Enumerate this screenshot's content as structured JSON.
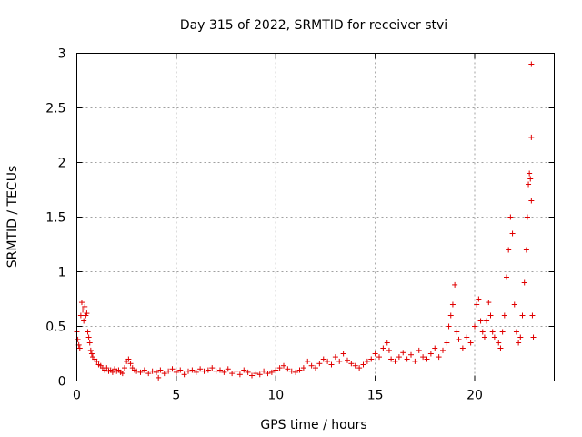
{
  "chart_data": {
    "type": "scatter",
    "title": "Day 315 of 2022, SRMTID for receiver stvi",
    "xlabel": "GPS time / hours",
    "ylabel": "SRMTID / TECUs",
    "xlim": [
      0,
      24
    ],
    "ylim": [
      0,
      3
    ],
    "xticks": [
      0,
      5,
      10,
      15,
      20
    ],
    "xtick_labels": [
      "0",
      "5",
      "10",
      "15",
      "20"
    ],
    "yticks": [
      0,
      0.5,
      1,
      1.5,
      2,
      2.5,
      3
    ],
    "ytick_labels": [
      "0",
      "0.5",
      "1",
      "1.5",
      "2",
      "2.5",
      "3"
    ],
    "grid": true,
    "marker": "+",
    "color": "#e00000",
    "series": [
      {
        "name": "SRMTID",
        "points": [
          [
            0.0,
            0.45
          ],
          [
            0.05,
            0.38
          ],
          [
            0.1,
            0.33
          ],
          [
            0.15,
            0.3
          ],
          [
            0.2,
            0.6
          ],
          [
            0.25,
            0.72
          ],
          [
            0.3,
            0.65
          ],
          [
            0.35,
            0.55
          ],
          [
            0.4,
            0.68
          ],
          [
            0.45,
            0.6
          ],
          [
            0.5,
            0.62
          ],
          [
            0.55,
            0.45
          ],
          [
            0.6,
            0.4
          ],
          [
            0.65,
            0.35
          ],
          [
            0.7,
            0.28
          ],
          [
            0.75,
            0.25
          ],
          [
            0.8,
            0.22
          ],
          [
            0.9,
            0.2
          ],
          [
            1.0,
            0.18
          ],
          [
            1.1,
            0.15
          ],
          [
            1.2,
            0.14
          ],
          [
            1.3,
            0.12
          ],
          [
            1.4,
            0.1
          ],
          [
            1.5,
            0.12
          ],
          [
            1.6,
            0.09
          ],
          [
            1.7,
            0.1
          ],
          [
            1.8,
            0.08
          ],
          [
            1.9,
            0.11
          ],
          [
            2.0,
            0.09
          ],
          [
            2.1,
            0.1
          ],
          [
            2.2,
            0.08
          ],
          [
            2.3,
            0.07
          ],
          [
            2.4,
            0.12
          ],
          [
            2.5,
            0.18
          ],
          [
            2.6,
            0.2
          ],
          [
            2.7,
            0.16
          ],
          [
            2.8,
            0.12
          ],
          [
            2.9,
            0.1
          ],
          [
            3.0,
            0.09
          ],
          [
            3.2,
            0.08
          ],
          [
            3.4,
            0.1
          ],
          [
            3.6,
            0.07
          ],
          [
            3.8,
            0.09
          ],
          [
            4.0,
            0.08
          ],
          [
            4.1,
            0.03
          ],
          [
            4.2,
            0.1
          ],
          [
            4.4,
            0.07
          ],
          [
            4.6,
            0.09
          ],
          [
            4.8,
            0.11
          ],
          [
            5.0,
            0.08
          ],
          [
            5.2,
            0.1
          ],
          [
            5.4,
            0.06
          ],
          [
            5.6,
            0.09
          ],
          [
            5.8,
            0.1
          ],
          [
            6.0,
            0.08
          ],
          [
            6.2,
            0.11
          ],
          [
            6.4,
            0.09
          ],
          [
            6.6,
            0.1
          ],
          [
            6.8,
            0.12
          ],
          [
            7.0,
            0.09
          ],
          [
            7.2,
            0.1
          ],
          [
            7.4,
            0.08
          ],
          [
            7.6,
            0.11
          ],
          [
            7.8,
            0.07
          ],
          [
            8.0,
            0.09
          ],
          [
            8.2,
            0.06
          ],
          [
            8.4,
            0.1
          ],
          [
            8.6,
            0.08
          ],
          [
            8.8,
            0.05
          ],
          [
            9.0,
            0.07
          ],
          [
            9.2,
            0.06
          ],
          [
            9.4,
            0.09
          ],
          [
            9.6,
            0.07
          ],
          [
            9.8,
            0.08
          ],
          [
            10.0,
            0.1
          ],
          [
            10.2,
            0.12
          ],
          [
            10.4,
            0.14
          ],
          [
            10.6,
            0.11
          ],
          [
            10.8,
            0.09
          ],
          [
            11.0,
            0.08
          ],
          [
            11.2,
            0.1
          ],
          [
            11.4,
            0.12
          ],
          [
            11.6,
            0.18
          ],
          [
            11.8,
            0.14
          ],
          [
            12.0,
            0.12
          ],
          [
            12.2,
            0.16
          ],
          [
            12.4,
            0.2
          ],
          [
            12.6,
            0.18
          ],
          [
            12.8,
            0.15
          ],
          [
            13.0,
            0.22
          ],
          [
            13.2,
            0.18
          ],
          [
            13.4,
            0.25
          ],
          [
            13.6,
            0.19
          ],
          [
            13.8,
            0.16
          ],
          [
            14.0,
            0.14
          ],
          [
            14.2,
            0.12
          ],
          [
            14.4,
            0.15
          ],
          [
            14.6,
            0.18
          ],
          [
            14.8,
            0.2
          ],
          [
            15.0,
            0.25
          ],
          [
            15.2,
            0.22
          ],
          [
            15.4,
            0.3
          ],
          [
            15.6,
            0.35
          ],
          [
            15.7,
            0.28
          ],
          [
            15.8,
            0.2
          ],
          [
            16.0,
            0.18
          ],
          [
            16.2,
            0.22
          ],
          [
            16.4,
            0.26
          ],
          [
            16.6,
            0.2
          ],
          [
            16.8,
            0.24
          ],
          [
            17.0,
            0.18
          ],
          [
            17.2,
            0.28
          ],
          [
            17.4,
            0.22
          ],
          [
            17.6,
            0.2
          ],
          [
            17.8,
            0.25
          ],
          [
            18.0,
            0.3
          ],
          [
            18.2,
            0.22
          ],
          [
            18.4,
            0.28
          ],
          [
            18.6,
            0.35
          ],
          [
            18.7,
            0.5
          ],
          [
            18.8,
            0.6
          ],
          [
            18.9,
            0.7
          ],
          [
            19.0,
            0.88
          ],
          [
            19.1,
            0.45
          ],
          [
            19.2,
            0.38
          ],
          [
            19.4,
            0.3
          ],
          [
            19.6,
            0.4
          ],
          [
            19.8,
            0.35
          ],
          [
            20.0,
            0.5
          ],
          [
            20.1,
            0.7
          ],
          [
            20.2,
            0.75
          ],
          [
            20.3,
            0.55
          ],
          [
            20.4,
            0.45
          ],
          [
            20.5,
            0.4
          ],
          [
            20.6,
            0.55
          ],
          [
            20.7,
            0.72
          ],
          [
            20.8,
            0.6
          ],
          [
            20.9,
            0.45
          ],
          [
            21.0,
            0.4
          ],
          [
            21.2,
            0.35
          ],
          [
            21.3,
            0.3
          ],
          [
            21.4,
            0.45
          ],
          [
            21.5,
            0.6
          ],
          [
            21.6,
            0.95
          ],
          [
            21.7,
            1.2
          ],
          [
            21.8,
            1.5
          ],
          [
            21.9,
            1.35
          ],
          [
            22.0,
            0.7
          ],
          [
            22.1,
            0.45
          ],
          [
            22.2,
            0.35
          ],
          [
            22.3,
            0.4
          ],
          [
            22.4,
            0.6
          ],
          [
            22.5,
            0.9
          ],
          [
            22.6,
            1.2
          ],
          [
            22.65,
            1.5
          ],
          [
            22.7,
            1.8
          ],
          [
            22.75,
            1.9
          ],
          [
            22.8,
            1.85
          ],
          [
            22.85,
            1.65
          ],
          [
            22.9,
            0.6
          ],
          [
            22.95,
            0.4
          ],
          [
            22.85,
            2.23
          ],
          [
            22.85,
            2.9
          ]
        ]
      }
    ]
  }
}
